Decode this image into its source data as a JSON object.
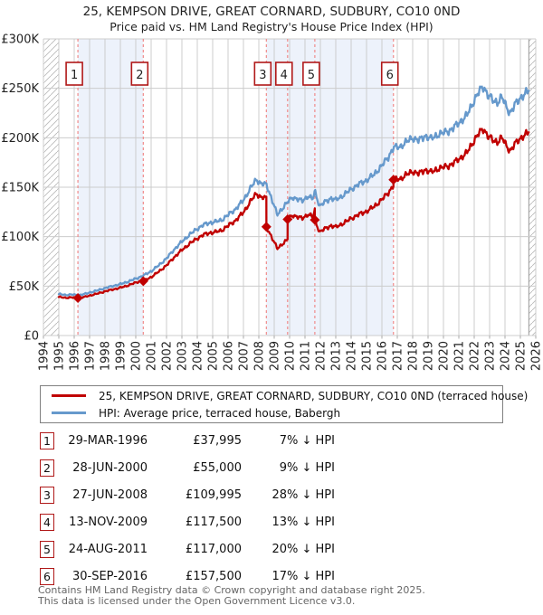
{
  "title": "25, KEMPSON DRIVE, GREAT CORNARD, SUDBURY, CO10 0ND",
  "subtitle": "Price paid vs. HM Land Registry's House Price Index (HPI)",
  "colors": {
    "price_line": "#c00000",
    "hpi_line": "#6699cc",
    "sale_dash": "#f08a8a",
    "band_fill": "#edf2fb",
    "grid": "#cccccc",
    "hatch_line": "#bbbbbb",
    "hatch_edge": "#999999",
    "badge_border": "#b01818",
    "axis_text": "#222222",
    "footer_text": "#666666"
  },
  "chart_data": {
    "type": "line",
    "title": "25, KEMPSON DRIVE, GREAT CORNARD, SUDBURY, CO10 0ND — Price paid vs. HM Land Registry's House Price Index (HPI)",
    "xlabel": "",
    "ylabel": "Price (GBP)",
    "x_axis": {
      "min": 1994,
      "max": 2026,
      "tick_years": [
        1994,
        1995,
        1996,
        1997,
        1998,
        1999,
        2000,
        2001,
        2002,
        2003,
        2004,
        2005,
        2006,
        2007,
        2008,
        2009,
        2010,
        2011,
        2012,
        2013,
        2014,
        2015,
        2016,
        2017,
        2018,
        2019,
        2020,
        2021,
        2022,
        2023,
        2024,
        2025,
        2026
      ]
    },
    "y_axis": {
      "min": 0,
      "max": 300000,
      "tick_values_k": [
        0,
        50,
        100,
        150,
        200,
        250,
        300
      ],
      "tick_labels": [
        "£0",
        "£50K",
        "£100K",
        "£150K",
        "£200K",
        "£250K",
        "£300K"
      ]
    },
    "grid": true,
    "legend_position": "bottom",
    "data_start": 1995.0,
    "data_end": 2025.55,
    "series": [
      {
        "name": "25, KEMPSON DRIVE, GREAT CORNARD, SUDBURY, CO10 0ND (terraced house)",
        "color": "#c00000",
        "role": "price-paid",
        "derivation": "hpi_scaled_between_sales"
      },
      {
        "name": "HPI: Average price, terraced house, Babergh",
        "color": "#6699cc",
        "role": "hpi",
        "anchors_year_valueK": [
          [
            1995.0,
            42
          ],
          [
            1995.4,
            41
          ],
          [
            1995.8,
            41.5
          ],
          [
            1996.24,
            40.8
          ],
          [
            1996.7,
            42
          ],
          [
            1997.0,
            43.5
          ],
          [
            1997.5,
            45.5
          ],
          [
            1998.0,
            48
          ],
          [
            1998.5,
            50
          ],
          [
            1999.0,
            52
          ],
          [
            1999.5,
            54.5
          ],
          [
            2000.0,
            57.5
          ],
          [
            2000.49,
            60.5
          ],
          [
            2001.0,
            65
          ],
          [
            2001.5,
            71
          ],
          [
            2002.0,
            78
          ],
          [
            2002.5,
            87
          ],
          [
            2003.0,
            95
          ],
          [
            2003.5,
            102
          ],
          [
            2004.0,
            108
          ],
          [
            2004.4,
            112
          ],
          [
            2004.8,
            114
          ],
          [
            2005.2,
            115
          ],
          [
            2005.6,
            117
          ],
          [
            2006.0,
            122
          ],
          [
            2006.5,
            128
          ],
          [
            2007.0,
            137
          ],
          [
            2007.5,
            150
          ],
          [
            2007.85,
            158
          ],
          [
            2008.1,
            154
          ],
          [
            2008.49,
            152.5
          ],
          [
            2008.8,
            140
          ],
          [
            2009.2,
            122
          ],
          [
            2009.6,
            130
          ],
          [
            2009.87,
            135
          ],
          [
            2010.2,
            140
          ],
          [
            2010.5,
            138
          ],
          [
            2010.8,
            136
          ],
          [
            2011.2,
            141
          ],
          [
            2011.5,
            138
          ],
          [
            2011.64,
            146
          ],
          [
            2011.95,
            131
          ],
          [
            2012.3,
            135
          ],
          [
            2012.7,
            139
          ],
          [
            2013.0,
            137
          ],
          [
            2013.5,
            142
          ],
          [
            2014.0,
            148
          ],
          [
            2014.5,
            153
          ],
          [
            2015.0,
            157
          ],
          [
            2015.5,
            163
          ],
          [
            2016.0,
            172
          ],
          [
            2016.4,
            180
          ],
          [
            2016.75,
            190
          ],
          [
            2017.2,
            191
          ],
          [
            2017.6,
            196
          ],
          [
            2018.0,
            200
          ],
          [
            2018.4,
            197
          ],
          [
            2018.8,
            202
          ],
          [
            2019.2,
            199
          ],
          [
            2019.6,
            203
          ],
          [
            2020.0,
            205
          ],
          [
            2020.5,
            208
          ],
          [
            2021.0,
            215
          ],
          [
            2021.5,
            222
          ],
          [
            2022.0,
            238
          ],
          [
            2022.3,
            246
          ],
          [
            2022.6,
            252
          ],
          [
            2022.9,
            243
          ],
          [
            2023.2,
            238
          ],
          [
            2023.5,
            236
          ],
          [
            2023.8,
            241
          ],
          [
            2024.1,
            231
          ],
          [
            2024.35,
            225
          ],
          [
            2024.6,
            232
          ],
          [
            2024.85,
            238
          ],
          [
            2025.1,
            242
          ],
          [
            2025.3,
            244
          ],
          [
            2025.55,
            248
          ]
        ]
      }
    ],
    "price_factors_vs_hpi": [
      {
        "until": 2000.49,
        "f": 0.93
      },
      {
        "until": 2008.49,
        "f": 0.91
      },
      {
        "until": 2009.87,
        "f": 0.72
      },
      {
        "until": 2011.64,
        "f": 0.87
      },
      {
        "until": 2016.75,
        "f": 0.8
      },
      {
        "until": 2026.0,
        "f": 0.83
      }
    ],
    "sales": [
      {
        "n": "1",
        "x": 1996.24,
        "price_k": 37.995
      },
      {
        "n": "2",
        "x": 2000.49,
        "price_k": 55
      },
      {
        "n": "3",
        "x": 2008.49,
        "price_k": 109.995
      },
      {
        "n": "4",
        "x": 2009.87,
        "price_k": 117.5
      },
      {
        "n": "5",
        "x": 2011.64,
        "price_k": 117
      },
      {
        "n": "6",
        "x": 2016.75,
        "price_k": 157.5
      }
    ],
    "bands": [
      {
        "from": 1996.24,
        "to": 2000.49
      },
      {
        "from": 2008.49,
        "to": 2016.75
      }
    ],
    "hatch_regions": [
      {
        "from": 1994,
        "to": 1995
      },
      {
        "from": 2025.55,
        "to": 2026
      }
    ]
  },
  "legend": [
    {
      "label": "25, KEMPSON DRIVE, GREAT CORNARD, SUDBURY, CO10 0ND (terraced house)",
      "color": "#c00000"
    },
    {
      "label": "HPI: Average price, terraced house, Babergh",
      "color": "#6699cc"
    }
  ],
  "table": {
    "rows": [
      {
        "num": "1",
        "date": "29-MAR-1996",
        "price": "£37,995",
        "delta": "7% ↓ HPI"
      },
      {
        "num": "2",
        "date": "28-JUN-2000",
        "price": "£55,000",
        "delta": "9% ↓ HPI"
      },
      {
        "num": "3",
        "date": "27-JUN-2008",
        "price": "£109,995",
        "delta": "28% ↓ HPI"
      },
      {
        "num": "4",
        "date": "13-NOV-2009",
        "price": "£117,500",
        "delta": "13% ↓ HPI"
      },
      {
        "num": "5",
        "date": "24-AUG-2011",
        "price": "£117,000",
        "delta": "20% ↓ HPI"
      },
      {
        "num": "6",
        "date": "30-SEP-2016",
        "price": "£157,500",
        "delta": "17% ↓ HPI"
      }
    ]
  },
  "footer": {
    "line1": "Contains HM Land Registry data © Crown copyright and database right 2025.",
    "line2": "This data is licensed under the Open Government Licence v3.0."
  }
}
